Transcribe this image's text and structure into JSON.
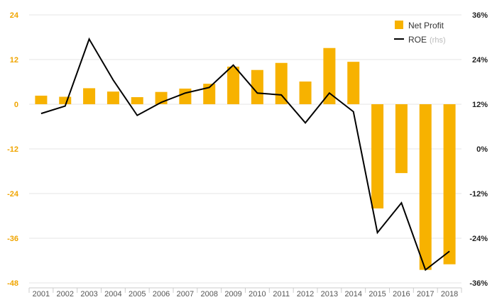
{
  "chart_data": {
    "type": "bar+line",
    "categories": [
      "2001",
      "2002",
      "2003",
      "2004",
      "2005",
      "2006",
      "2007",
      "2008",
      "2009",
      "2010",
      "2011",
      "2012",
      "2013",
      "2014",
      "2015",
      "2016",
      "2017",
      "2018"
    ],
    "series": [
      {
        "name": "Net Profit",
        "axis": "left",
        "type": "bar",
        "values": [
          2.3,
          2.0,
          4.3,
          3.4,
          1.9,
          3.3,
          4.2,
          5.5,
          10.1,
          9.2,
          11.1,
          6.1,
          15.1,
          11.4,
          -28.0,
          -18.5,
          -44.5,
          -43.0
        ]
      },
      {
        "name": "ROE",
        "axis": "right",
        "axis_note": "(rhs)",
        "type": "line",
        "values": [
          9.5,
          11.5,
          29.5,
          18.5,
          9.0,
          12.5,
          15.0,
          16.5,
          22.5,
          15.0,
          14.5,
          7.0,
          15.0,
          10.0,
          -22.5,
          -14.5,
          -32.5,
          -27.5
        ]
      }
    ],
    "left_axis": {
      "ylim": [
        -48,
        24
      ],
      "ticks": [
        24,
        12,
        0,
        -12,
        -24,
        -36,
        -48
      ],
      "tick_labels": [
        "24",
        "12",
        "0",
        "-12",
        "-24",
        "-36",
        "-48"
      ]
    },
    "right_axis": {
      "ylim": [
        -36,
        36
      ],
      "ticks": [
        36,
        24,
        12,
        0,
        -12,
        -24,
        -36
      ],
      "tick_labels": [
        "36%",
        "24%",
        "12%",
        "0%",
        "-12%",
        "-24%",
        "-36%"
      ]
    },
    "legend": {
      "position": "top-right"
    },
    "grid": true,
    "colors": {
      "bar": "#f7b200",
      "line": "#000000",
      "grid": "#e6e6e6",
      "left_axis_text": "#f0a500"
    }
  }
}
